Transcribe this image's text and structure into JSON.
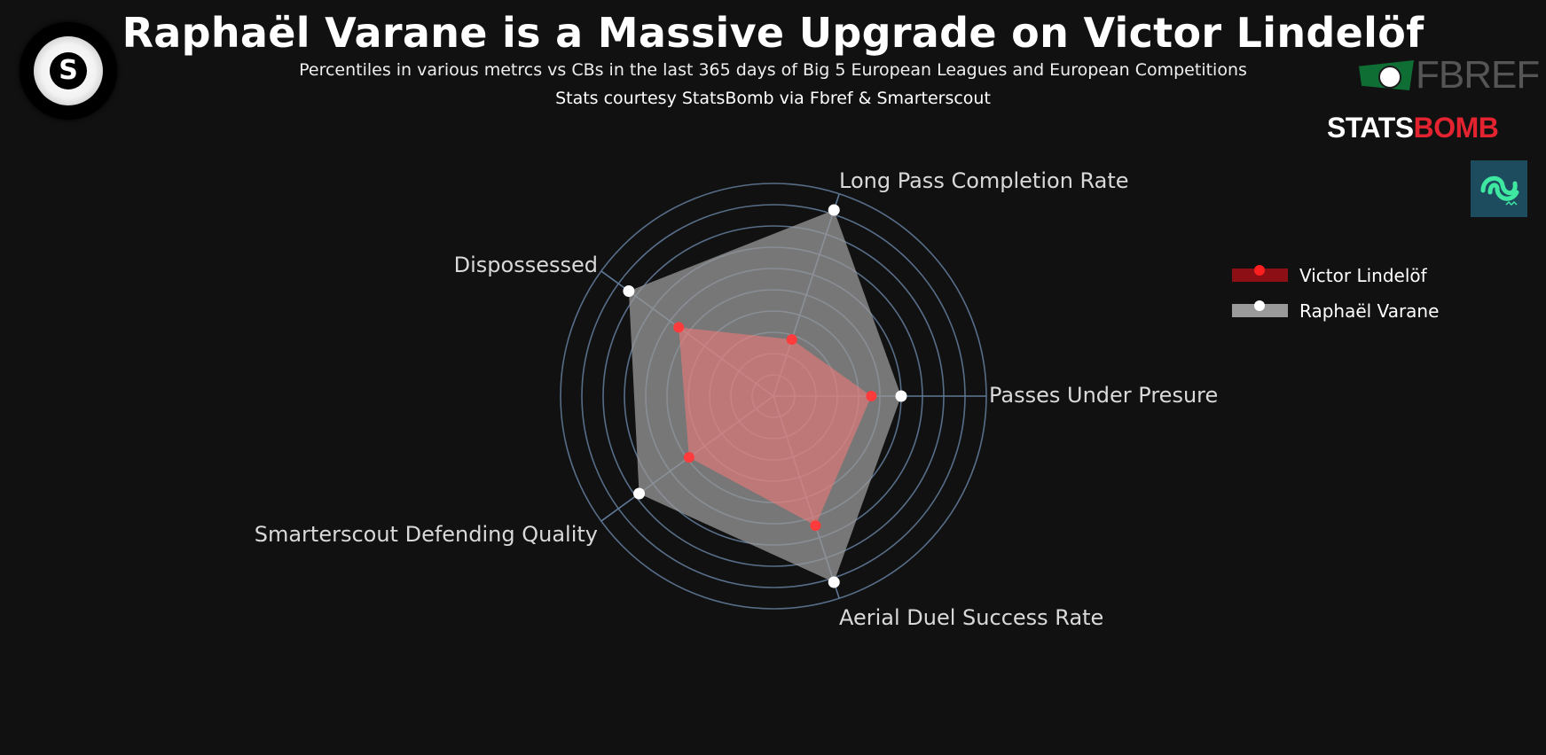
{
  "header": {
    "title": "Raphaël Varane is a Massive Upgrade on Victor Lindelöf",
    "subtitle": "Percentiles in various metrcs vs CBs in the last 365 days of Big 5 European Leagues and European Competitions",
    "credits": "Stats courtesy StatsBomb via Fbref & Smarterscout"
  },
  "logos": {
    "site_logo_letter": "S",
    "fbref_text": "FBREF",
    "statsbomb_white": "STATS",
    "statsbomb_red": "BOMB"
  },
  "colors": {
    "background": "#111111",
    "grid": "#5f7896",
    "lindelof_fill": "#f07a7a",
    "lindelof_marker": "#ff3b3b",
    "varane_fill": "#9a9a9a",
    "varane_marker": "#ffffff"
  },
  "chart_data": {
    "type": "radar",
    "axes": [
      "Passes Under Presure",
      "Long Pass Completion Rate",
      "Dispossessed",
      "Smarterscout Defending Quality",
      "Aerial Duel Success Rate"
    ],
    "range": [
      0,
      100
    ],
    "grid": true,
    "legend_position": "top-right",
    "series": [
      {
        "name": "Victor Lindelöf",
        "values": [
          46,
          28,
          55,
          49,
          64
        ]
      },
      {
        "name": "Raphaël Varane",
        "values": [
          60,
          92,
          84,
          78,
          92
        ]
      }
    ]
  }
}
